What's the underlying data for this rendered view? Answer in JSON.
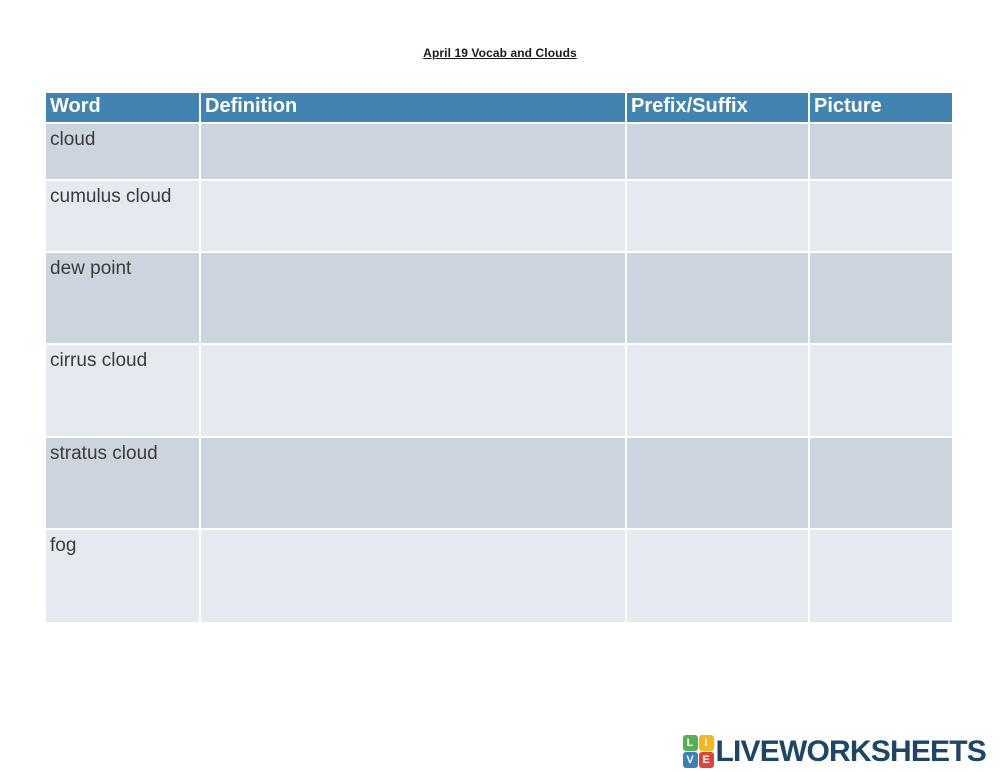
{
  "page": {
    "title": "April 19 Vocab and Clouds"
  },
  "table": {
    "headers": [
      "Word",
      "Definition",
      "Prefix/Suffix",
      "Picture"
    ],
    "rows": [
      {
        "word": "cloud",
        "definition": "",
        "prefix_suffix": "",
        "picture": ""
      },
      {
        "word": "cumulus cloud",
        "definition": "",
        "prefix_suffix": "",
        "picture": ""
      },
      {
        "word": "dew point",
        "definition": "",
        "prefix_suffix": "",
        "picture": ""
      },
      {
        "word": "cirrus cloud",
        "definition": "",
        "prefix_suffix": "",
        "picture": ""
      },
      {
        "word": "stratus cloud",
        "definition": "",
        "prefix_suffix": "",
        "picture": ""
      },
      {
        "word": "fog",
        "definition": "",
        "prefix_suffix": "",
        "picture": ""
      }
    ]
  },
  "colors": {
    "header_bg": "#4184b2",
    "header_text": "#ffffff",
    "row_dark": "#ccd5de",
    "row_light": "#e5eaf0",
    "cell_text": "#3b3b3b",
    "logo_navy": "#1d4566",
    "tile_green": "#53b152",
    "tile_yellow": "#f6b71d",
    "tile_blue": "#3d7ebb",
    "tile_red": "#e04438"
  },
  "logo": {
    "text": "LIVEWORKSHEETS",
    "tiles": [
      {
        "letter": "L",
        "color": "#53b152"
      },
      {
        "letter": "I",
        "color": "#f6b71d"
      },
      {
        "letter": "V",
        "color": "#3d7ebb"
      },
      {
        "letter": "E",
        "color": "#e04438"
      }
    ]
  }
}
